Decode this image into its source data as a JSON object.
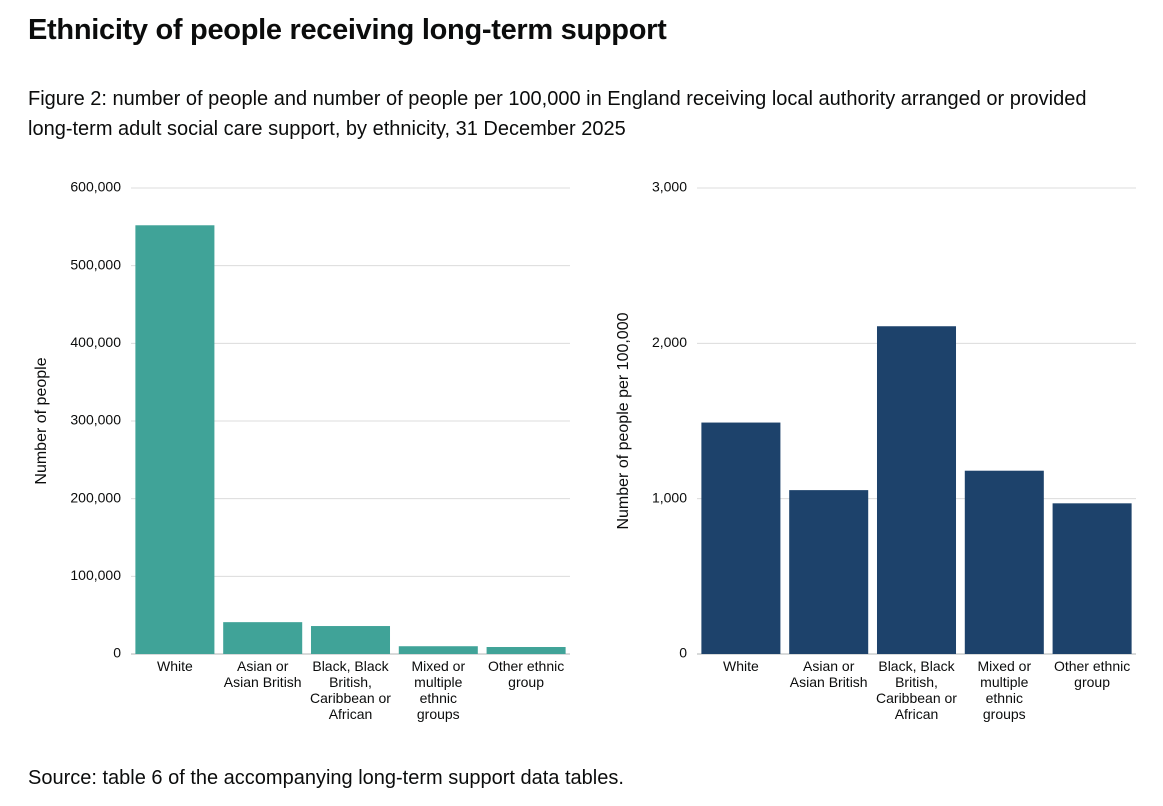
{
  "title": "Ethnicity of people receiving long-term support",
  "caption": "Figure 2: number of people and number of people per 100,000 in England receiving local authority arranged or provided long-term adult social care support, by ethnicity, 31 December 2025",
  "source": "Source: table 6 of the accompanying long-term support data tables.",
  "chart_data": [
    {
      "type": "bar",
      "y_label": "Number of people",
      "categories": [
        "White",
        "Asian or Asian British",
        "Black, Black British, Caribbean or African",
        "Mixed or multiple ethnic groups",
        "Other ethnic group"
      ],
      "values": [
        552000,
        41000,
        36000,
        10000,
        9000
      ],
      "color": "#40a398",
      "ylim": [
        0,
        600000
      ],
      "yticks": [
        0,
        {
          "value": 100000,
          "label": "100,000"
        },
        {
          "value": 200000,
          "label": "200,000"
        },
        {
          "value": 300000,
          "label": "300,000"
        },
        {
          "value": 400000,
          "label": "400,000"
        },
        {
          "value": 500000,
          "label": "500,000"
        },
        {
          "value": 600000,
          "label": "600,000"
        }
      ],
      "grid": true
    },
    {
      "type": "bar",
      "y_label": "Number of people per 100,000",
      "categories": [
        "White",
        "Asian or Asian British",
        "Black, Black British, Caribbean or African",
        "Mixed or multiple ethnic groups",
        "Other ethnic group"
      ],
      "values": [
        1490,
        1055,
        2110,
        1180,
        970
      ],
      "color": "#1d426b",
      "ylim": [
        0,
        3000
      ],
      "yticks": [
        0,
        {
          "value": 1000,
          "label": "1,000"
        },
        {
          "value": 2000,
          "label": "2,000"
        },
        {
          "value": 3000,
          "label": "3,000"
        }
      ],
      "grid": true
    }
  ]
}
